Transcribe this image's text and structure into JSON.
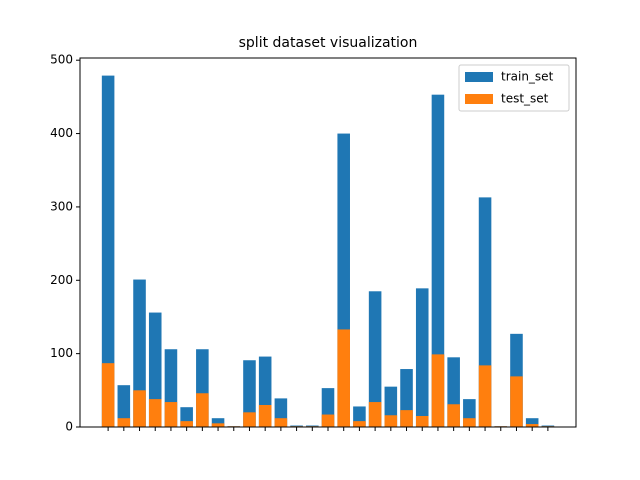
{
  "chart_data": {
    "type": "bar",
    "title": "split dataset visualization",
    "categories": [
      null,
      null,
      null,
      null,
      null,
      null,
      null,
      null,
      null,
      null,
      null,
      null,
      null,
      null,
      null,
      null,
      null,
      null,
      null,
      null,
      null,
      null,
      null,
      null,
      null,
      null,
      null,
      null,
      null
    ],
    "series": [
      {
        "name": "train_set",
        "color": "#1f77b4",
        "values": [
          479,
          57,
          201,
          156,
          106,
          27,
          106,
          12,
          1,
          91,
          96,
          39,
          2,
          2,
          53,
          400,
          28,
          185,
          55,
          79,
          189,
          453,
          95,
          38,
          313,
          1,
          127,
          12,
          2
        ]
      },
      {
        "name": "test_set",
        "color": "#ff7f0e",
        "values": [
          87,
          12,
          50,
          38,
          34,
          8,
          46,
          5,
          1,
          20,
          30,
          12,
          1,
          1,
          17,
          133,
          8,
          34,
          16,
          23,
          15,
          99,
          31,
          12,
          84,
          1,
          69,
          4,
          1
        ]
      }
    ],
    "ylim": [
      0,
      503
    ],
    "yticks": [
      0,
      100,
      200,
      300,
      400,
      500
    ],
    "legend": "upper right"
  }
}
